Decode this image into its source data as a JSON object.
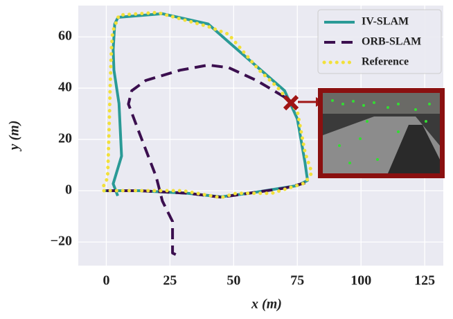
{
  "chart_data": {
    "type": "line",
    "xlabel": "x (m)",
    "ylabel": "y (m)",
    "xlim": [
      -11,
      132.3
    ],
    "ylim": [
      -29.2,
      72.2
    ],
    "xticks": [
      0,
      25,
      50,
      75,
      100,
      125
    ],
    "yticks": [
      {
        "value": -20,
        "label": "−20"
      },
      0,
      20,
      40,
      60
    ],
    "grid": true,
    "legend": "upper right",
    "series": [
      {
        "name": "IV-SLAM",
        "color": "#2a9a96",
        "style": "solid",
        "x": [
          4.5,
          2.7,
          6,
          5,
          3,
          2.7,
          3.3,
          4.6,
          22,
          40,
          48,
          70,
          75,
          78,
          79,
          75,
          56,
          45,
          32,
          13,
          -1
        ],
        "values": [
          -2,
          2.7,
          13.5,
          34,
          47,
          55,
          65,
          67.6,
          69,
          65,
          58,
          39,
          28,
          11,
          4,
          2,
          -1,
          -2.4,
          -1,
          0,
          0
        ]
      },
      {
        "name": "ORB-SLAM",
        "color": "#3b0f4f",
        "style": "dashed",
        "x": [
          0,
          13,
          32,
          45,
          56,
          70,
          78,
          null,
          70,
          59,
          48,
          40,
          29,
          15.5,
          10,
          8.7,
          12.8,
          19.6,
          22,
          26,
          26,
          29
        ],
        "values": [
          0,
          0,
          -1,
          -2.5,
          -1,
          1,
          3,
          null,
          36.5,
          43,
          48,
          49,
          47,
          43,
          39,
          33.8,
          23,
          5.4,
          -4,
          -12,
          -24.3,
          -25.7
        ]
      },
      {
        "name": "Reference",
        "color": "#f2e03a",
        "style": "dotted",
        "x": [
          -1,
          0.5,
          1,
          1.5,
          2,
          2.5,
          5,
          20,
          40,
          48,
          60,
          67,
          75,
          78,
          80.7,
          78,
          65,
          51,
          45,
          30,
          10,
          -1
        ],
        "values": [
          2,
          5,
          20,
          40,
          55,
          62,
          68.5,
          69.5,
          64,
          61,
          47,
          40.5,
          31,
          15,
          7,
          3,
          -1,
          -1,
          -2.7,
          0,
          0,
          0
        ]
      }
    ],
    "failure_point": {
      "x": 72.5,
      "y": 34.3,
      "color": "#a01515"
    }
  }
}
